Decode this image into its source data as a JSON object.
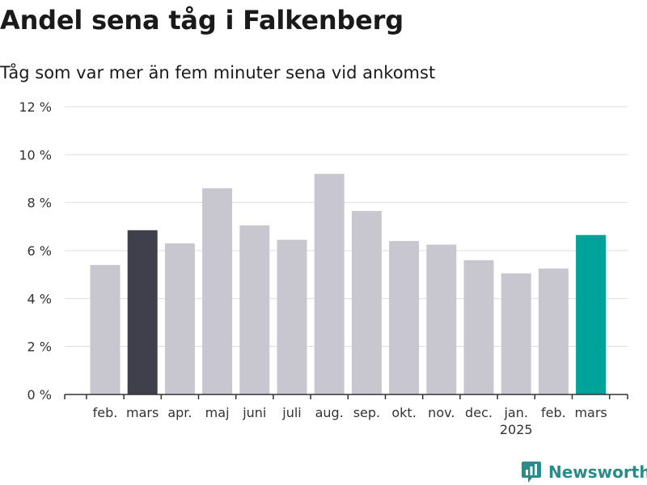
{
  "chart_data": {
    "type": "bar",
    "title": "Andel sena tåg i Falkenberg",
    "subtitle": "Tåg som var mer än fem minuter sena vid ankomst",
    "categories": [
      "feb.",
      "mars",
      "apr.",
      "maj",
      "juni",
      "juli",
      "aug.",
      "sep.",
      "okt.",
      "nov.",
      "dec.",
      "jan.",
      "feb.",
      "mars"
    ],
    "year_labels": [
      "",
      "",
      "",
      "",
      "",
      "",
      "",
      "",
      "",
      "",
      "",
      "2025",
      "",
      ""
    ],
    "values": [
      5.4,
      6.85,
      6.3,
      8.6,
      7.05,
      6.45,
      9.2,
      7.65,
      6.4,
      6.25,
      5.6,
      5.05,
      5.25,
      6.65
    ],
    "ylim": [
      0,
      12
    ],
    "yticks": [
      0,
      2,
      4,
      6,
      8,
      10,
      12
    ],
    "ytick_labels": [
      "0 %",
      "2 %",
      "4 %",
      "6 %",
      "8 %",
      "10 %",
      "12 %"
    ],
    "grid": true,
    "colors": {
      "default": "#c8c7d0",
      "highlight_previous_year": "#403f4c",
      "highlight_current": "#00a39a",
      "grid": "#dddddd",
      "axis": "#333333"
    },
    "bar_colors": [
      "default",
      "highlight_previous_year",
      "default",
      "default",
      "default",
      "default",
      "default",
      "default",
      "default",
      "default",
      "default",
      "default",
      "default",
      "highlight_current"
    ]
  },
  "brand": {
    "name": "Newsworthy",
    "color": "#2a8c8a"
  }
}
